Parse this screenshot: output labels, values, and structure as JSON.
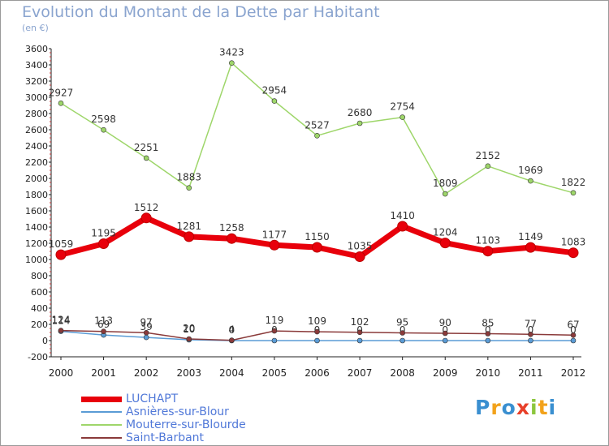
{
  "title": "Evolution du Montant de la Dette par Habitant",
  "subtitle": "(en €)",
  "logo": {
    "text": "Proxiti",
    "letters": [
      {
        "ch": "P",
        "color": "#3a8fd0"
      },
      {
        "ch": "r",
        "color": "#f2a21b"
      },
      {
        "ch": "o",
        "color": "#3a8fd0"
      },
      {
        "ch": "x",
        "color": "#e8402a"
      },
      {
        "ch": "i",
        "color": "#8cc63e"
      },
      {
        "ch": "t",
        "color": "#f2a21b"
      },
      {
        "ch": "i",
        "color": "#3a8fd0"
      }
    ]
  },
  "chart_data": {
    "type": "line",
    "title": "Evolution du Montant de la Dette par Habitant",
    "subtitle": "(en €)",
    "xlabel": "",
    "ylabel": "",
    "x": [
      "2000",
      "2001",
      "2002",
      "2003",
      "2004",
      "2005",
      "2006",
      "2007",
      "2008",
      "2009",
      "2010",
      "2011",
      "2012"
    ],
    "ylim": [
      -200,
      3600
    ],
    "yticks": [
      -200,
      0,
      200,
      400,
      600,
      800,
      1000,
      1200,
      1400,
      1600,
      1800,
      2000,
      2200,
      2400,
      2600,
      2800,
      3000,
      3200,
      3400,
      3600
    ],
    "grid": false,
    "legend_position": "bottom-left",
    "series": [
      {
        "name": "LUCHAPT",
        "color": "#e8000b",
        "values": [
          1059,
          1195,
          1512,
          1281,
          1258,
          1177,
          1150,
          1035,
          1410,
          1204,
          1103,
          1149,
          1083
        ],
        "labels": [
          "1059",
          "1195",
          "1512",
          "1281",
          "1258",
          "1177",
          "1150",
          "1035",
          "1410",
          "1204",
          "1103",
          "1149",
          "1083"
        ]
      },
      {
        "name": "Asnières-sur-Blour",
        "color": "#5a9bd5",
        "values": [
          114,
          69,
          39,
          10,
          0,
          0,
          0,
          0,
          0,
          0,
          0,
          0,
          0
        ],
        "labels": [
          "114",
          "69",
          "39",
          "10",
          "0",
          "0",
          "0",
          "0",
          "0",
          "0",
          "0",
          "0",
          "0"
        ]
      },
      {
        "name": "Mouterre-sur-Blourde",
        "color": "#9ed66a",
        "values": [
          2927,
          2598,
          2251,
          1883,
          3423,
          2954,
          2527,
          2680,
          2754,
          1809,
          2152,
          1969,
          1822
        ],
        "labels": [
          "2927",
          "2598",
          "2251",
          "1883",
          "3423",
          "2954",
          "2527",
          "2680",
          "2754",
          "1809",
          "2152",
          "1969",
          "1822"
        ]
      },
      {
        "name": "Saint-Barbant",
        "color": "#8a3a3a",
        "values": [
          124,
          113,
          97,
          20,
          4,
          119,
          109,
          102,
          95,
          90,
          85,
          77,
          67
        ],
        "labels": [
          "124",
          "113",
          "97",
          "20",
          "4",
          "119",
          "109",
          "102",
          "95",
          "90",
          "85",
          "77",
          "67"
        ]
      }
    ]
  }
}
